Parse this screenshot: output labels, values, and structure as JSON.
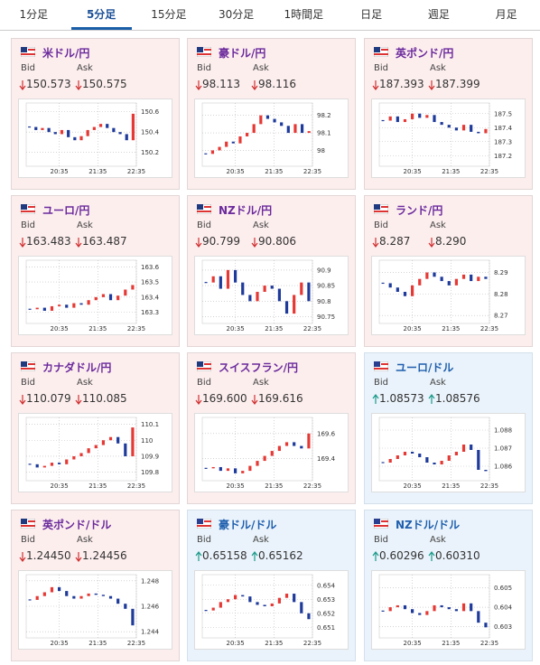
{
  "tabs": [
    "1分足",
    "5分足",
    "15分足",
    "30分足",
    "1時間足",
    "日足",
    "週足",
    "月足"
  ],
  "active_tab": 1,
  "labels": {
    "bid": "Bid",
    "ask": "Ask"
  },
  "cards": [
    {
      "name": "米ドル/円",
      "bid": "150.573",
      "ask": "150.575",
      "direction": "down",
      "chart": {
        "type": "candlestick",
        "ylim": [
          150.1,
          150.65
        ],
        "yticks": [
          150.2,
          150.4,
          150.6
        ],
        "xlabels": [
          "20:35",
          "21:35",
          "22:35"
        ],
        "values": [
          150.45,
          150.42,
          150.44,
          150.4,
          150.38,
          150.42,
          150.35,
          150.32,
          150.36,
          150.42,
          150.45,
          150.48,
          150.44,
          150.4,
          150.38,
          150.32,
          150.58
        ]
      }
    },
    {
      "name": "豪ドル/円",
      "bid": "98.113",
      "ask": "98.116",
      "direction": "down",
      "chart": {
        "type": "candlestick",
        "ylim": [
          97.93,
          98.25
        ],
        "yticks": [
          98,
          98.1,
          98.2
        ],
        "xlabels": [
          "20:35",
          "21:35",
          "22:35"
        ],
        "values": [
          97.98,
          98.0,
          98.02,
          98.05,
          98.04,
          98.08,
          98.1,
          98.15,
          98.2,
          98.18,
          98.16,
          98.14,
          98.1,
          98.15,
          98.1,
          98.11
        ]
      }
    },
    {
      "name": "英ポンド/円",
      "bid": "187.393",
      "ask": "187.399",
      "direction": "down",
      "chart": {
        "type": "candlestick",
        "ylim": [
          187.15,
          187.55
        ],
        "yticks": [
          187.2,
          187.3,
          187.4,
          187.5
        ],
        "xlabels": [
          "20:35",
          "21:35",
          "22:35"
        ],
        "values": [
          187.45,
          187.48,
          187.44,
          187.46,
          187.5,
          187.47,
          187.49,
          187.44,
          187.42,
          187.4,
          187.38,
          187.42,
          187.37,
          187.36,
          187.39
        ]
      }
    },
    {
      "name": "ユーロ/円",
      "bid": "163.483",
      "ask": "163.487",
      "direction": "down",
      "chart": {
        "type": "candlestick",
        "ylim": [
          163.25,
          163.62
        ],
        "yticks": [
          163.3,
          163.4,
          163.5,
          163.6
        ],
        "xlabels": [
          "20:35",
          "21:35",
          "22:35"
        ],
        "values": [
          163.32,
          163.33,
          163.31,
          163.34,
          163.35,
          163.33,
          163.36,
          163.35,
          163.38,
          163.4,
          163.42,
          163.38,
          163.41,
          163.45,
          163.48
        ]
      }
    },
    {
      "name": "NZドル/円",
      "bid": "90.799",
      "ask": "90.806",
      "direction": "down",
      "chart": {
        "type": "candlestick",
        "ylim": [
          90.74,
          90.92
        ],
        "yticks": [
          90.75,
          90.8,
          90.85,
          90.9
        ],
        "xlabels": [
          "20:35",
          "21:35",
          "22:35"
        ],
        "values": [
          90.86,
          90.88,
          90.84,
          90.9,
          90.86,
          90.82,
          90.8,
          90.83,
          90.85,
          90.84,
          90.8,
          90.76,
          90.82,
          90.86,
          90.8
        ]
      }
    },
    {
      "name": "ランド/円",
      "bid": "8.287",
      "ask": "8.290",
      "direction": "down",
      "chart": {
        "type": "candlestick",
        "ylim": [
          8.268,
          8.294
        ],
        "yticks": [
          8.27,
          8.28,
          8.29
        ],
        "xlabels": [
          "20:35",
          "21:35",
          "22:35"
        ],
        "values": [
          8.285,
          8.283,
          8.281,
          8.279,
          8.284,
          8.287,
          8.29,
          8.288,
          8.286,
          8.284,
          8.287,
          8.289,
          8.286,
          8.288,
          8.287
        ]
      }
    },
    {
      "name": "カナダドル/円",
      "bid": "110.079",
      "ask": "110.085",
      "direction": "down",
      "chart": {
        "type": "candlestick",
        "ylim": [
          109.77,
          110.12
        ],
        "yticks": [
          109.8,
          109.9,
          110,
          110.1
        ],
        "xlabels": [
          "20:35",
          "21:35",
          "22:35"
        ],
        "values": [
          109.85,
          109.83,
          109.84,
          109.86,
          109.85,
          109.88,
          109.9,
          109.92,
          109.95,
          109.97,
          110.0,
          110.02,
          109.98,
          109.9,
          110.08
        ]
      }
    },
    {
      "name": "スイスフラン/円",
      "bid": "169.600",
      "ask": "169.616",
      "direction": "down",
      "chart": {
        "type": "candlestick",
        "ylim": [
          169.25,
          169.7
        ],
        "yticks": [
          169.4,
          169.6
        ],
        "xlabels": [
          "20:35",
          "21:35",
          "22:35"
        ],
        "values": [
          169.32,
          169.33,
          169.3,
          169.32,
          169.28,
          169.3,
          169.34,
          169.38,
          169.42,
          169.46,
          169.5,
          169.53,
          169.5,
          169.48,
          169.6
        ]
      }
    },
    {
      "name": "ユーロ/ドル",
      "bid": "1.08573",
      "ask": "1.08576",
      "direction": "up",
      "chart": {
        "type": "candlestick",
        "ylim": [
          1.0854,
          1.0885
        ],
        "yticks": [
          1.086,
          1.087,
          1.088
        ],
        "xlabels": [
          "20:35",
          "21:35",
          "22:35"
        ],
        "values": [
          1.0862,
          1.0864,
          1.0866,
          1.0868,
          1.0867,
          1.0865,
          1.0862,
          1.0861,
          1.0863,
          1.0866,
          1.0868,
          1.0872,
          1.0869,
          1.0858,
          1.08573
        ]
      }
    },
    {
      "name": "英ポンド/ドル",
      "bid": "1.24450",
      "ask": "1.24456",
      "direction": "down",
      "chart": {
        "type": "candlestick",
        "ylim": [
          1.2438,
          1.2482
        ],
        "yticks": [
          1.244,
          1.246,
          1.248
        ],
        "xlabels": [
          "20:35",
          "21:35",
          "22:35"
        ],
        "values": [
          1.2465,
          1.2468,
          1.2471,
          1.2475,
          1.2472,
          1.2468,
          1.2466,
          1.2468,
          1.247,
          1.2469,
          1.2468,
          1.2466,
          1.2462,
          1.2458,
          1.2445
        ]
      }
    },
    {
      "name": "豪ドル/ドル",
      "bid": "0.65158",
      "ask": "0.65162",
      "direction": "up",
      "chart": {
        "type": "candlestick",
        "ylim": [
          0.6505,
          0.6545
        ],
        "yticks": [
          0.651,
          0.652,
          0.653,
          0.654
        ],
        "xlabels": [
          "20:35",
          "21:35",
          "22:35"
        ],
        "values": [
          0.6522,
          0.6524,
          0.6528,
          0.653,
          0.6533,
          0.6532,
          0.6528,
          0.6526,
          0.6525,
          0.6527,
          0.6531,
          0.6534,
          0.6528,
          0.652,
          0.65158
        ]
      }
    },
    {
      "name": "NZドル/ドル",
      "bid": "0.60296",
      "ask": "0.60310",
      "direction": "up",
      "chart": {
        "type": "candlestick",
        "ylim": [
          0.6026,
          0.6055
        ],
        "yticks": [
          0.603,
          0.604,
          0.605
        ],
        "xlabels": [
          "20:35",
          "21:35",
          "22:35"
        ],
        "values": [
          0.6038,
          0.604,
          0.6041,
          0.6039,
          0.6037,
          0.6036,
          0.6038,
          0.6041,
          0.604,
          0.6039,
          0.6038,
          0.6042,
          0.6038,
          0.6032,
          0.60296
        ]
      }
    }
  ]
}
